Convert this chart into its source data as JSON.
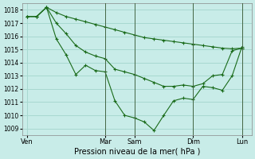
{
  "title": "",
  "xlabel": "Pression niveau de la mer( hPa )",
  "background_color": "#c8ece8",
  "grid_color": "#a8d8d0",
  "line_color": "#1a6b1a",
  "ylim": [
    1008.5,
    1018.5
  ],
  "yticks": [
    1009,
    1010,
    1011,
    1012,
    1013,
    1014,
    1015,
    1016,
    1017,
    1018
  ],
  "xtick_labels": [
    "Ven",
    "Mar",
    "Sam",
    "Dim",
    "Lun"
  ],
  "xtick_positions": [
    0,
    8,
    11,
    17,
    22
  ],
  "xlim": [
    -0.5,
    23
  ],
  "vlines": [
    8,
    11,
    17,
    22
  ],
  "series1_x": [
    0,
    1,
    2,
    3,
    4,
    5,
    6,
    7,
    8,
    9,
    10,
    11,
    12,
    13,
    14,
    15,
    16,
    17,
    18,
    19,
    20,
    21,
    22
  ],
  "series1_y": [
    1017.5,
    1017.5,
    1018.2,
    1017.8,
    1017.5,
    1017.3,
    1017.1,
    1016.9,
    1016.7,
    1016.5,
    1016.3,
    1016.1,
    1015.9,
    1015.8,
    1015.7,
    1015.6,
    1015.5,
    1015.4,
    1015.3,
    1015.2,
    1015.1,
    1015.05,
    1015.1
  ],
  "series2_x": [
    0,
    1,
    2,
    3,
    4,
    5,
    6,
    7,
    8,
    9,
    10,
    11,
    12,
    13,
    14,
    15,
    16,
    17,
    18,
    19,
    20,
    21,
    22
  ],
  "series2_y": [
    1017.5,
    1017.5,
    1018.2,
    1017.0,
    1016.2,
    1015.3,
    1014.8,
    1014.5,
    1014.3,
    1013.5,
    1013.3,
    1013.1,
    1012.8,
    1012.5,
    1012.2,
    1012.2,
    1012.3,
    1012.2,
    1012.4,
    1013.0,
    1013.1,
    1014.9,
    1015.1
  ],
  "series3_x": [
    0,
    1,
    2,
    3,
    4,
    5,
    6,
    7,
    8,
    9,
    10,
    11,
    12,
    13,
    14,
    15,
    16,
    17,
    18,
    19,
    20,
    21,
    22
  ],
  "series3_y": [
    1017.5,
    1017.5,
    1018.2,
    1015.8,
    1014.6,
    1013.1,
    1013.8,
    1013.4,
    1013.3,
    1011.1,
    1010.0,
    1009.8,
    1009.5,
    1008.85,
    1010.0,
    1011.1,
    1011.3,
    1011.2,
    1012.2,
    1012.1,
    1011.9,
    1013.0,
    1015.2
  ]
}
